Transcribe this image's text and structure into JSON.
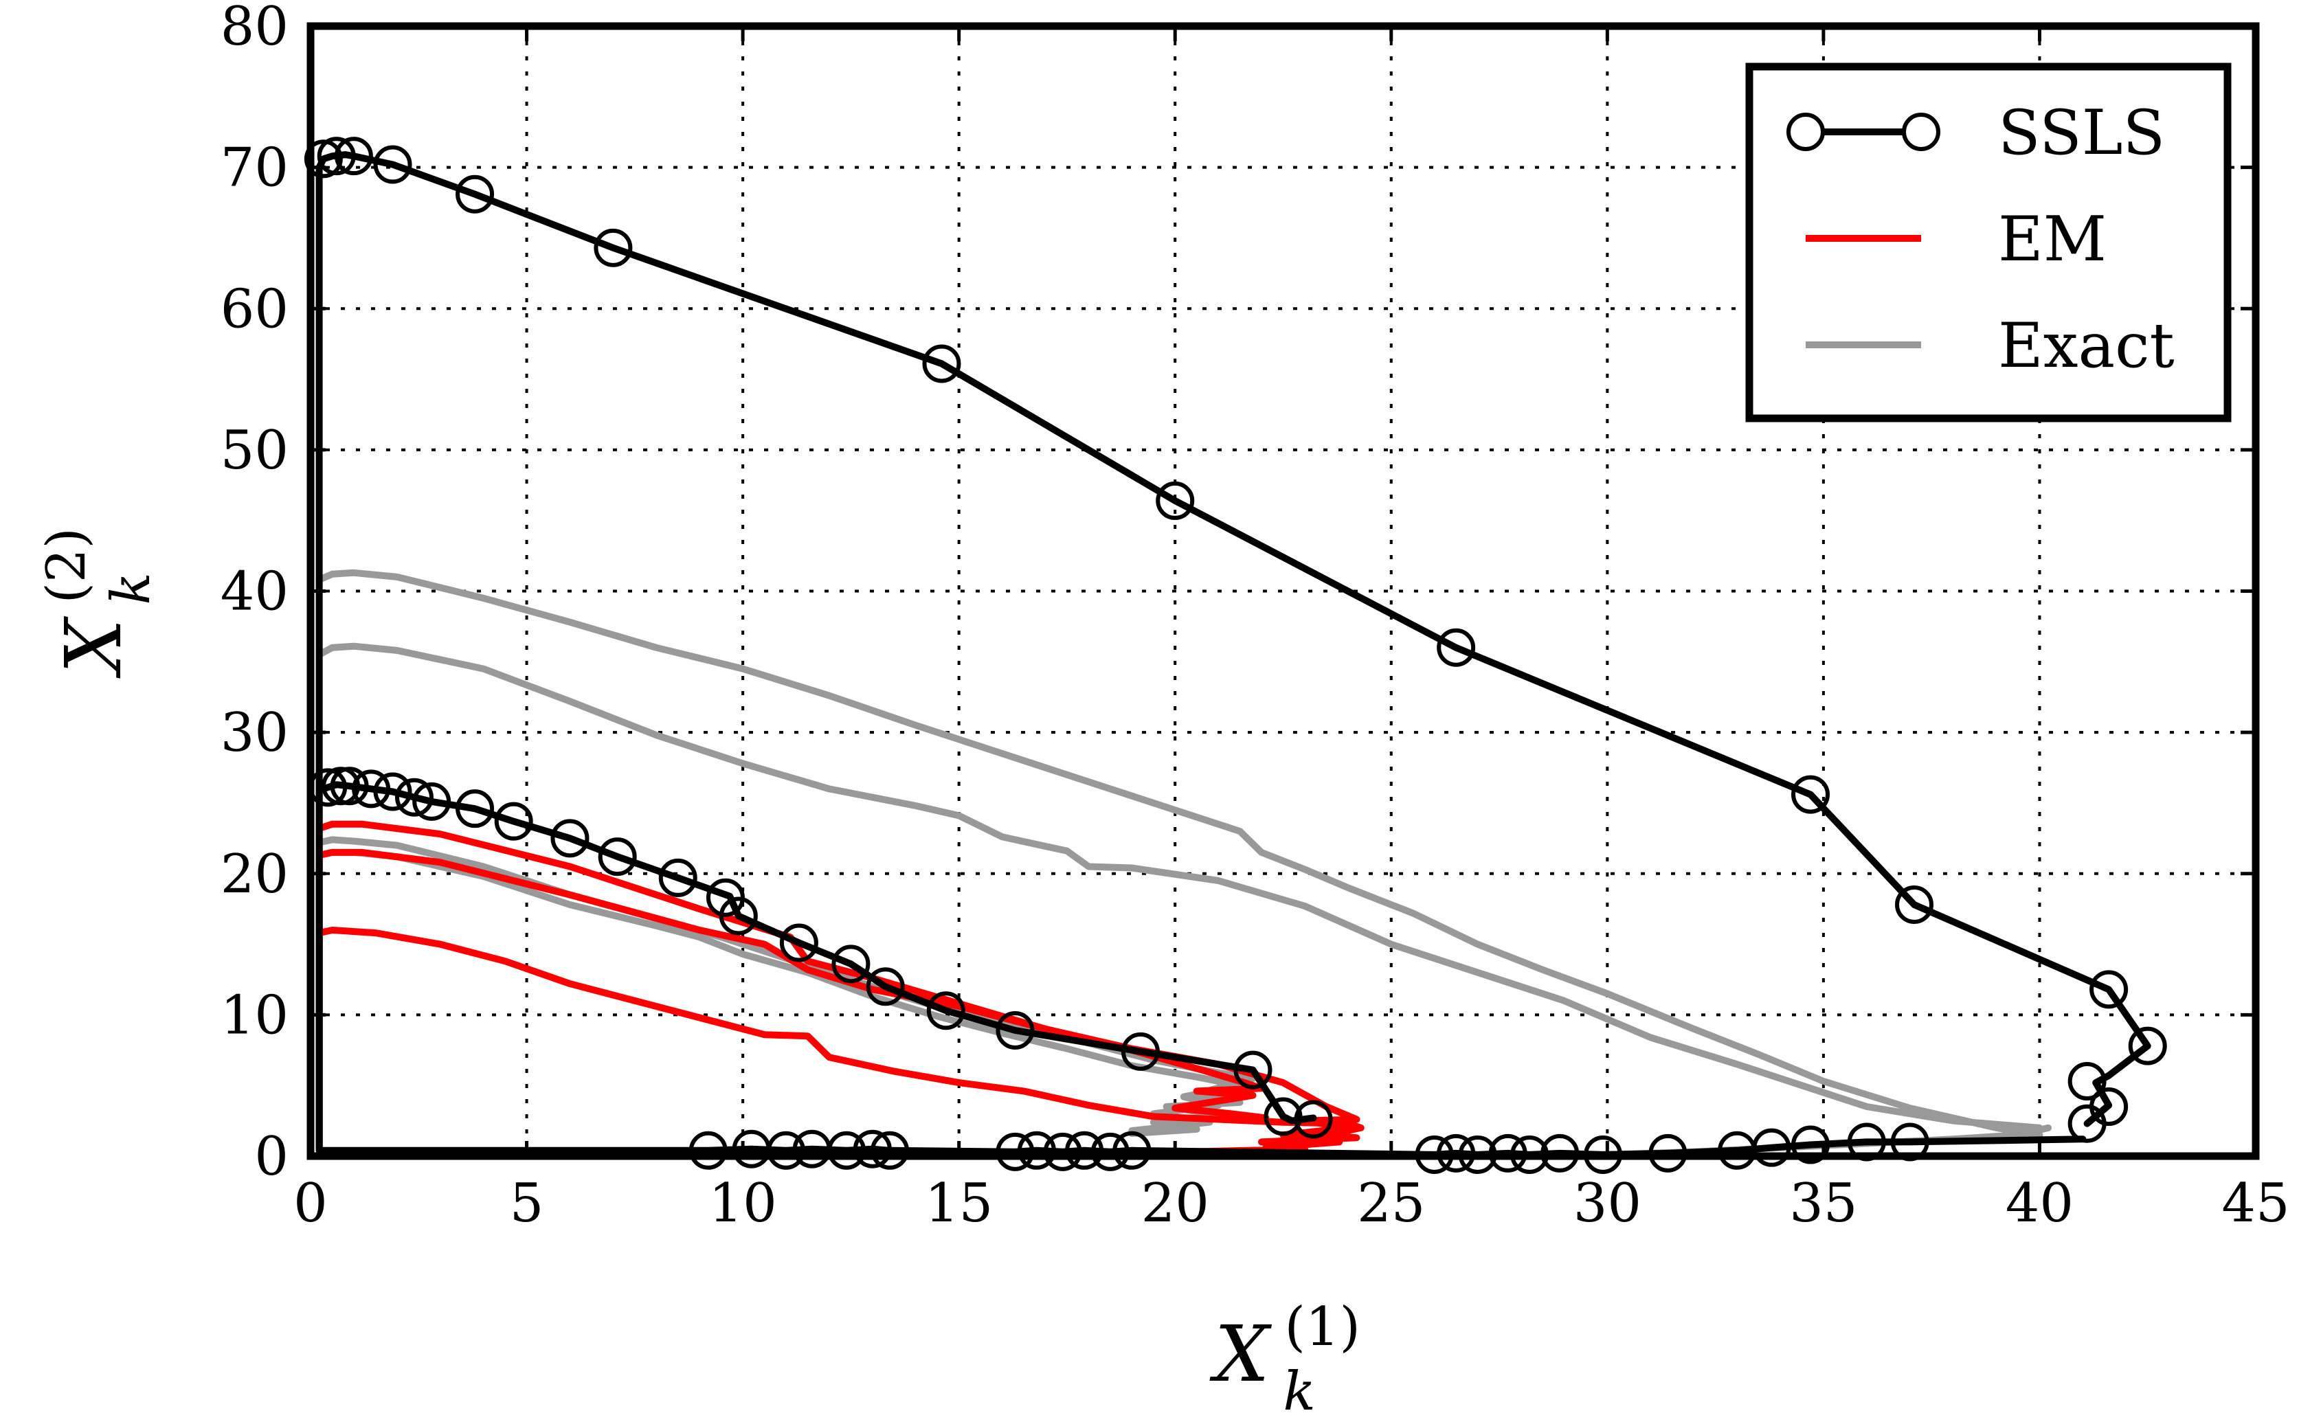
{
  "chart_data": {
    "type": "line",
    "xlabel": "X_k^(1)",
    "ylabel": "X_k^(2)",
    "xlim": [
      0,
      45
    ],
    "ylim": [
      0,
      80
    ],
    "xticks": [
      0,
      5,
      10,
      15,
      20,
      25,
      30,
      35,
      40,
      45
    ],
    "yticks": [
      0,
      10,
      20,
      30,
      40,
      50,
      60,
      70,
      80
    ],
    "grid": true,
    "legend_position": "top-right",
    "series": [
      {
        "name": "SSLS",
        "color": "#000000",
        "marker": "circle",
        "paths": [
          {
            "x": [
              0.2,
              0.2,
              0.3,
              0.5,
              0.8,
              1.0,
              1.9,
              3.8,
              7.0,
              14.6,
              20.0,
              26.5,
              34.7,
              37.1,
              41.6,
              42.5,
              41.6,
              41.3,
              41.6,
              41.1
            ],
            "y": [
              0.6,
              70.0,
              70.6,
              70.8,
              70.9,
              70.8,
              70.2,
              68.1,
              64.3,
              56.1,
              46.4,
              36.0,
              25.6,
              17.8,
              11.8,
              7.8,
              5.7,
              5.2,
              3.6,
              2.3
            ]
          },
          {
            "x": [
              0.2,
              0.2,
              0.4,
              0.6,
              0.9,
              1.4,
              1.9,
              2.4,
              2.8,
              3.8,
              4.7,
              6.0,
              7.1,
              8.5,
              9.7,
              9.9,
              11.3,
              12.5,
              13.3,
              14.7,
              16.3,
              19.2,
              21.8,
              22.5,
              22.7,
              23.2
            ],
            "y": [
              0.4,
              25.9,
              26.1,
              26.3,
              26.2,
              26.0,
              25.8,
              25.4,
              25.1,
              24.6,
              23.7,
              22.5,
              21.2,
              19.7,
              18.4,
              17.0,
              15.1,
              13.6,
              12.0,
              10.3,
              8.9,
              7.4,
              6.1,
              2.8,
              2.5,
              2.7
            ]
          },
          {
            "x": [
              0.2,
              9.2,
              10.2,
              11.0,
              11.6,
              12.4,
              13.0,
              13.4,
              16.3,
              16.8,
              17.4,
              17.9,
              18.5,
              19.0,
              26.0,
              26.5,
              27.0,
              27.7,
              28.2,
              28.9,
              29.9,
              31.4,
              33.0,
              33.8,
              34.7,
              36.0,
              37.0,
              41.0
            ],
            "y": [
              0.4,
              0.4,
              0.5,
              0.4,
              0.5,
              0.4,
              0.5,
              0.4,
              0.3,
              0.4,
              0.3,
              0.4,
              0.3,
              0.4,
              0.1,
              0.2,
              0.1,
              0.2,
              0.1,
              0.2,
              0.1,
              0.2,
              0.4,
              0.6,
              0.8,
              1.0,
              1.0,
              1.2
            ]
          }
        ],
        "markers": [
          [
            0.3,
            70.6
          ],
          [
            0.6,
            70.8
          ],
          [
            1.0,
            70.8
          ],
          [
            1.9,
            70.2
          ],
          [
            3.8,
            68.1
          ],
          [
            7.0,
            64.3
          ],
          [
            14.6,
            56.1
          ],
          [
            20.0,
            46.4
          ],
          [
            26.5,
            36.0
          ],
          [
            34.7,
            25.6
          ],
          [
            37.1,
            17.8
          ],
          [
            41.6,
            11.8
          ],
          [
            42.5,
            7.8
          ],
          [
            41.1,
            5.3
          ],
          [
            41.6,
            3.5
          ],
          [
            41.1,
            2.3
          ],
          [
            0.4,
            26.1
          ],
          [
            0.7,
            26.2
          ],
          [
            0.9,
            26.2
          ],
          [
            1.4,
            26.0
          ],
          [
            1.9,
            25.8
          ],
          [
            2.4,
            25.4
          ],
          [
            2.8,
            25.1
          ],
          [
            3.8,
            24.6
          ],
          [
            4.7,
            23.7
          ],
          [
            6.0,
            22.5
          ],
          [
            7.1,
            21.2
          ],
          [
            8.5,
            19.7
          ],
          [
            9.6,
            18.3
          ],
          [
            9.9,
            17.0
          ],
          [
            11.3,
            15.1
          ],
          [
            12.5,
            13.6
          ],
          [
            13.3,
            12.0
          ],
          [
            14.7,
            10.3
          ],
          [
            16.3,
            8.9
          ],
          [
            19.2,
            7.4
          ],
          [
            21.8,
            6.1
          ],
          [
            22.5,
            2.8
          ],
          [
            23.2,
            2.6
          ],
          [
            9.2,
            0.4
          ],
          [
            10.2,
            0.5
          ],
          [
            11.0,
            0.4
          ],
          [
            11.6,
            0.5
          ],
          [
            12.4,
            0.4
          ],
          [
            13.0,
            0.5
          ],
          [
            13.4,
            0.4
          ],
          [
            16.3,
            0.3
          ],
          [
            16.8,
            0.4
          ],
          [
            17.4,
            0.3
          ],
          [
            17.9,
            0.4
          ],
          [
            18.5,
            0.3
          ],
          [
            19.0,
            0.4
          ],
          [
            26.0,
            0.1
          ],
          [
            26.5,
            0.2
          ],
          [
            27.0,
            0.1
          ],
          [
            27.7,
            0.2
          ],
          [
            28.2,
            0.1
          ],
          [
            28.9,
            0.2
          ],
          [
            29.9,
            0.1
          ],
          [
            31.4,
            0.2
          ],
          [
            33.0,
            0.4
          ],
          [
            33.8,
            0.6
          ],
          [
            34.7,
            0.8
          ],
          [
            36.0,
            1.0
          ],
          [
            37.0,
            1.0
          ]
        ]
      },
      {
        "name": "EM",
        "color": "#ff0000",
        "marker": "none",
        "paths": [
          {
            "x": [
              0.2,
              0.2,
              0.5,
              1.2,
              3.0,
              6.0,
              9.0,
              11.1,
              11.5,
              13.0,
              15.0,
              17.0,
              19.0,
              20.5,
              21.5,
              22.0,
              20.5,
              21.8,
              20.0,
              21.3,
              22.1
            ],
            "y": [
              0.5,
              23.2,
              23.5,
              23.5,
              22.8,
              20.5,
              17.5,
              15.5,
              13.8,
              12.6,
              10.8,
              9.0,
              7.5,
              6.2,
              5.3,
              4.8,
              4.6,
              4.3,
              3.4,
              3.0,
              2.7
            ]
          },
          {
            "x": [
              0.2,
              0.2,
              0.5,
              1.2,
              3.0,
              6.0,
              9.0,
              10.5,
              11.5,
              13.0,
              15.0,
              17.0,
              19.0,
              21.0,
              22.5,
              23.5,
              24.2,
              23.0,
              24.0,
              22.5,
              23.8,
              22.1
            ],
            "y": [
              0.5,
              21.3,
              21.5,
              21.5,
              20.8,
              18.5,
              16.0,
              15.0,
              13.2,
              11.8,
              10.6,
              9.0,
              7.6,
              6.5,
              5.2,
              3.5,
              2.6,
              2.5,
              2.0,
              1.5,
              1.0,
              0.6
            ]
          },
          {
            "x": [
              0.2,
              0.2,
              0.5,
              1.5,
              3.0,
              4.5,
              6.0,
              7.5,
              9.0,
              10.5,
              11.5,
              12.0,
              13.5,
              15.0,
              16.5,
              18.0,
              19.5,
              21.0,
              22.5,
              24.0,
              24.3,
              23.5,
              24.2,
              22.0,
              23.0,
              19.0
            ],
            "y": [
              0.5,
              15.8,
              16.0,
              15.8,
              15.0,
              13.8,
              12.2,
              11.0,
              9.8,
              8.6,
              8.5,
              7.0,
              6.0,
              5.2,
              4.6,
              3.6,
              2.8,
              2.6,
              2.4,
              2.3,
              2.0,
              1.5,
              1.3,
              1.0,
              0.5,
              0.2
            ]
          }
        ]
      },
      {
        "name": "Exact",
        "color": "#999999",
        "marker": "none",
        "paths": [
          {
            "x": [
              0.2,
              0.2,
              0.5,
              1.0,
              2.0,
              4.0,
              6.0,
              8.0,
              10.0,
              12.0,
              14.0,
              16.0,
              18.0,
              20.0,
              21.5,
              22.0,
              23.0,
              24.0,
              25.5,
              27.0,
              28.5,
              30.0,
              32.0,
              33.5,
              35.0,
              37.0,
              39.0,
              40.0
            ],
            "y": [
              0.5,
              40.8,
              41.2,
              41.3,
              41.0,
              39.5,
              37.8,
              36.0,
              34.5,
              32.6,
              30.5,
              28.5,
              26.5,
              24.5,
              23.0,
              21.5,
              20.3,
              19.0,
              17.2,
              15.0,
              13.2,
              11.5,
              9.0,
              7.2,
              5.3,
              3.4,
              2.0,
              1.5
            ]
          },
          {
            "x": [
              0.2,
              0.2,
              0.5,
              1.0,
              2.0,
              4.0,
              6.0,
              8.0,
              10.0,
              12.0,
              14.0,
              15.0,
              16.0,
              17.5,
              18.0,
              19.0,
              21.0,
              23.0,
              25.0,
              27.0,
              29.0,
              31.0,
              33.0,
              34.0,
              36.0,
              38.0,
              40.0
            ],
            "y": [
              0.5,
              35.5,
              36.0,
              36.1,
              35.8,
              34.5,
              32.2,
              29.8,
              27.8,
              26.0,
              24.8,
              24.1,
              22.6,
              21.6,
              20.5,
              20.4,
              19.5,
              17.7,
              15.0,
              13.0,
              11.0,
              8.4,
              6.5,
              5.5,
              3.5,
              2.5,
              2.0
            ]
          },
          {
            "x": [
              0.2,
              0.2,
              0.5,
              1.0,
              2.0,
              4.0,
              6.0,
              8.0,
              9.5,
              10.5,
              12.0,
              13.5,
              15.0,
              16.5,
              18.0,
              19.5,
              21.0,
              21.8,
              20.5,
              21.5,
              19.8,
              21.2,
              19.5,
              20.5,
              19.0
            ],
            "y": [
              0.5,
              22.2,
              22.4,
              22.3,
              22.0,
              20.5,
              18.5,
              16.8,
              15.5,
              14.5,
              13.0,
              11.5,
              10.1,
              9.2,
              8.0,
              6.8,
              5.9,
              5.5,
              4.4,
              3.8,
              3.5,
              2.8,
              2.4,
              1.9,
              1.6
            ]
          },
          {
            "x": [
              0.2,
              0.2,
              0.5,
              1.0,
              2.0,
              4.0,
              6.0,
              8.0,
              9.0,
              10.0,
              11.5,
              13.0,
              14.5,
              16.0,
              17.5,
              19.0,
              20.5,
              21.5,
              20.2,
              21.0,
              19.5,
              20.8,
              19.0
            ],
            "y": [
              0.5,
              21.3,
              21.5,
              21.5,
              21.2,
              19.8,
              17.8,
              16.3,
              15.5,
              14.3,
              13.0,
              11.3,
              9.9,
              8.7,
              7.6,
              6.4,
              5.6,
              5.0,
              4.2,
              3.6,
              3.0,
              2.4,
              1.8
            ]
          },
          {
            "x": [
              30.0,
              32.0,
              34.0,
              36.0,
              38.0,
              39.5,
              40.2
            ],
            "y": [
              0.1,
              0.3,
              0.6,
              0.9,
              1.2,
              1.5,
              2.0
            ]
          }
        ]
      }
    ]
  }
}
